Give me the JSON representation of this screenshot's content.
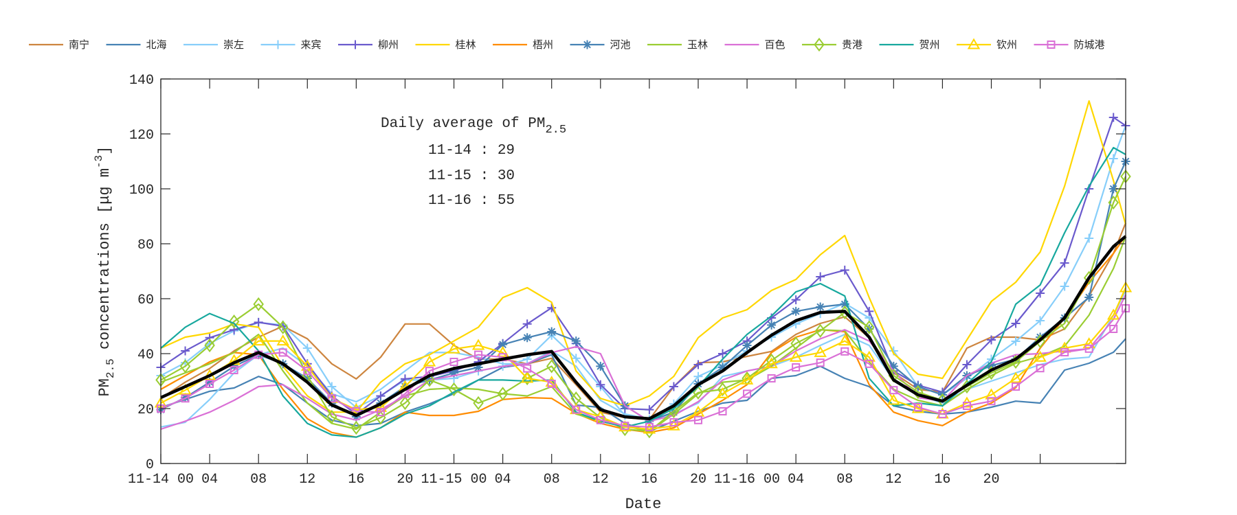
{
  "chart_data": {
    "type": "line",
    "xlabel": "Date",
    "ylabel": {
      "main": "PM",
      "sub": "2.5",
      "rest": " concentrations [μg m",
      "sup": "-3",
      "end": "]"
    },
    "xlim": [
      0,
      79
    ],
    "ylim": [
      0,
      140
    ],
    "grid": false,
    "legend_position": "top",
    "x_unit": "hour since 11-14 00:00",
    "x": [
      0,
      2,
      4,
      6,
      8,
      10,
      12,
      14,
      16,
      18,
      20,
      22,
      24,
      26,
      28,
      30,
      32,
      34,
      36,
      38,
      40,
      42,
      44,
      46,
      48,
      50,
      52,
      54,
      56,
      58,
      60,
      62,
      64,
      66,
      68,
      70,
      72,
      74,
      76,
      78,
      79
    ],
    "xticks": [
      0,
      4,
      8,
      12,
      16,
      20,
      24,
      28,
      32,
      36,
      40,
      44,
      48,
      52,
      56,
      60,
      64,
      68,
      72
    ],
    "xtick_labels": [
      "11-14 00",
      "04",
      "08",
      "12",
      "16",
      "20",
      "11-15 00",
      "04",
      "08",
      "12",
      "16",
      "20",
      "11-16 00",
      "04",
      "08",
      "12",
      "16",
      "20",
      ""
    ],
    "yticks": [
      0,
      20,
      40,
      60,
      80,
      100,
      120,
      140
    ],
    "ytick_labels": [
      "0",
      "20",
      "40",
      "60",
      "80",
      "100",
      "120",
      "140"
    ],
    "annotation": {
      "title_main": "Daily average of PM",
      "title_sub": "2.5",
      "lines": [
        "11-14 : 29",
        "11-15 : 30",
        "11-16 : 55"
      ]
    },
    "series": [
      {
        "name": "南宁",
        "color": "#CD853F",
        "marker": "none",
        "values": [
          23.7,
          29.6,
          34.6,
          41,
          46,
          50,
          45.4,
          36.3,
          30.8,
          38.7,
          50.8,
          50.8,
          43,
          38,
          38,
          36.3,
          38.3,
          28.7,
          18.7,
          16.7,
          16,
          28,
          36.7,
          37,
          39,
          40.8,
          47,
          51,
          53.4,
          45.8,
          33,
          27,
          26,
          42,
          46,
          46,
          45,
          49,
          61,
          76.5,
          87.6
        ]
      },
      {
        "name": "北海",
        "color": "#4682B4",
        "marker": "none",
        "values": [
          20.4,
          23.3,
          26.3,
          27.5,
          31.7,
          28.7,
          22,
          15.8,
          13.8,
          14.6,
          18.7,
          21.7,
          25.4,
          30.4,
          35,
          36.3,
          39.6,
          21.3,
          20.4,
          14.6,
          11.7,
          15.4,
          19,
          22,
          23,
          31,
          32,
          35.4,
          31,
          28,
          21,
          19,
          18,
          18.7,
          20.5,
          22.7,
          22,
          34,
          36.5,
          40.5,
          45.4
        ]
      },
      {
        "name": "崇左",
        "color": "#87CEFA",
        "marker": "none",
        "values": [
          13.3,
          15,
          23.3,
          33,
          39.6,
          42,
          35.4,
          25.4,
          22.5,
          27,
          33.7,
          40.4,
          40.4,
          38.7,
          36.3,
          36.3,
          41,
          35.4,
          23,
          18,
          16.3,
          18,
          22,
          31.7,
          33.7,
          35.4,
          38.7,
          43,
          47,
          43,
          30.4,
          25,
          22,
          27,
          30,
          33,
          36,
          38,
          38.7,
          54,
          63
        ]
      },
      {
        "name": "来宾",
        "color": "#87CEFA",
        "marker": "plus",
        "values": [
          32,
          36.7,
          43.7,
          48.3,
          51.3,
          50.4,
          42,
          28,
          20.4,
          24.6,
          30.4,
          30.4,
          31,
          33.7,
          35.4,
          38,
          46.7,
          38.3,
          28,
          17.5,
          16,
          21.7,
          31.7,
          35.8,
          41,
          46,
          50.8,
          54.6,
          58.3,
          53,
          41,
          28,
          25,
          31,
          38,
          44.5,
          52,
          64.5,
          82,
          111,
          123
        ]
      },
      {
        "name": "柳州",
        "color": "#6A5ACD",
        "marker": "plus",
        "values": [
          35,
          41,
          45.8,
          48.7,
          51.4,
          50,
          36.3,
          24.6,
          17.9,
          24.6,
          30.8,
          31.7,
          33.7,
          37,
          43.7,
          50.8,
          56.7,
          43.7,
          28.7,
          20,
          19.6,
          28,
          36,
          40,
          44.6,
          53,
          59.6,
          68,
          70.4,
          55.4,
          33.7,
          28.5,
          26,
          36,
          45,
          51,
          62,
          73,
          100,
          126,
          123
        ]
      },
      {
        "name": "桂林",
        "color": "#FFD700",
        "marker": "none",
        "values": [
          42,
          46,
          47.5,
          50.8,
          49.6,
          35.4,
          24.6,
          18.7,
          18.7,
          29.6,
          36.3,
          39.6,
          44.6,
          49.6,
          60.4,
          64,
          58.7,
          33.7,
          23.7,
          21,
          24.6,
          31.7,
          45.8,
          53,
          56,
          63,
          67,
          76,
          83,
          60.4,
          40,
          32.5,
          31,
          45,
          59,
          66,
          77,
          101,
          132,
          103,
          87
        ]
      },
      {
        "name": "梧州",
        "color": "#FF8C00",
        "marker": "none",
        "values": [
          27,
          32,
          37,
          40.4,
          39.6,
          27,
          16.3,
          11.3,
          9.6,
          13,
          18.7,
          17.5,
          17.5,
          19,
          23.3,
          24,
          23.7,
          18.3,
          14.6,
          12.5,
          11.3,
          13,
          18,
          23,
          28.7,
          40.4,
          46,
          48.7,
          48,
          28.7,
          18.7,
          15.6,
          13.8,
          18.7,
          22,
          27.6,
          42,
          53,
          66,
          76.5,
          83
        ]
      },
      {
        "name": "河池",
        "color": "#4682B4",
        "marker": "star",
        "values": [
          19.6,
          24,
          29.6,
          35.4,
          39.6,
          36.3,
          31,
          22,
          17,
          22,
          28,
          30.4,
          33,
          35,
          43.3,
          45.8,
          48,
          44.6,
          35.4,
          21,
          15.4,
          18.7,
          29,
          35,
          43,
          50.4,
          55.4,
          57,
          58,
          49,
          35.4,
          28,
          25,
          32,
          35.6,
          38,
          46,
          53,
          60.5,
          100,
          110
        ]
      },
      {
        "name": "玉林",
        "color": "#9ACD32",
        "marker": "none",
        "values": [
          29.6,
          33,
          36.3,
          40.4,
          47,
          33.7,
          22,
          14.6,
          12.5,
          18.7,
          24.6,
          27,
          27.5,
          27,
          25.4,
          24.6,
          28,
          18,
          15.4,
          13.7,
          11.7,
          18,
          25.4,
          29.6,
          30.4,
          35.4,
          42,
          48.7,
          48.3,
          37,
          27,
          23,
          21,
          27,
          32,
          36.5,
          39,
          42.7,
          54,
          71,
          82.7
        ]
      },
      {
        "name": "百色",
        "color": "#DA70D6",
        "marker": "none",
        "values": [
          12.5,
          15.4,
          18.7,
          23,
          28,
          28.7,
          23.7,
          18,
          15.8,
          19.6,
          24.6,
          30.4,
          32,
          33.7,
          35.4,
          36.3,
          40.4,
          42.5,
          40,
          21,
          15.4,
          17.5,
          22.5,
          30.4,
          33.7,
          35.4,
          41,
          45.4,
          48.7,
          44.6,
          33.7,
          24,
          22.7,
          32,
          36.5,
          39.6,
          40,
          41,
          41.8,
          52.5,
          61.4
        ]
      },
      {
        "name": "贵港",
        "color": "#9ACD32",
        "marker": "diamond",
        "values": [
          30.4,
          35.4,
          43,
          51.7,
          58,
          49.6,
          32,
          17,
          13,
          16.7,
          22,
          30.4,
          27,
          22,
          25.4,
          31,
          35.4,
          23.7,
          16.7,
          12.5,
          11.7,
          19,
          25.8,
          27,
          31,
          37.5,
          43.7,
          48.3,
          55,
          49.6,
          32,
          26,
          23,
          28,
          33,
          37,
          44.5,
          51,
          67.6,
          95,
          104.5
        ]
      },
      {
        "name": "贺州",
        "color": "#17A89E",
        "marker": "none",
        "values": [
          42,
          49.6,
          54.6,
          51,
          41,
          24.6,
          14.6,
          10.4,
          9.6,
          13,
          18,
          21,
          26,
          30.4,
          30.4,
          30,
          30.4,
          18.7,
          15.4,
          13.3,
          15.4,
          20,
          28,
          38,
          47,
          53.7,
          62.5,
          65.5,
          61,
          31,
          21,
          22,
          21,
          29,
          37,
          58,
          65,
          84,
          101,
          115,
          112.5
        ]
      },
      {
        "name": "钦州",
        "color": "#FFD700",
        "marker": "triangle",
        "values": [
          22,
          26.7,
          32,
          37.5,
          44.6,
          44.6,
          35.4,
          23.7,
          19.6,
          20.4,
          28,
          37,
          41.7,
          43,
          40.4,
          31,
          29.6,
          19.6,
          17,
          13.3,
          12.5,
          13.7,
          18.7,
          25.4,
          30.4,
          36.3,
          38.7,
          40.4,
          44.6,
          38.7,
          23,
          20,
          18,
          22,
          25,
          31,
          38.7,
          42,
          43.6,
          54,
          64
        ]
      },
      {
        "name": "防城港",
        "color": "#DA70D6",
        "marker": "square",
        "values": [
          20,
          23.7,
          29,
          34,
          39.6,
          40.4,
          33.7,
          23.7,
          19,
          18.7,
          25.4,
          33.7,
          37,
          39.6,
          38.7,
          34.6,
          29,
          19.6,
          15.8,
          13.7,
          13.3,
          15,
          15.8,
          19,
          25.4,
          31,
          35,
          36.7,
          40.8,
          36.3,
          26.7,
          20.5,
          18,
          21,
          22.7,
          28,
          34.7,
          40.5,
          41.8,
          49,
          56.5
        ]
      }
    ],
    "mean_series": {
      "color": "#000000",
      "values": [
        24,
        28,
        32,
        36.7,
        40.4,
        36.3,
        29.6,
        21.3,
        17.5,
        21.7,
        27,
        32,
        34.6,
        36.3,
        38,
        39.6,
        40.8,
        29.6,
        19.6,
        17,
        16.3,
        21,
        28.7,
        33.7,
        40.4,
        46.7,
        52,
        55,
        55.4,
        46,
        30.4,
        25,
        22.7,
        28.5,
        34,
        38,
        45,
        53,
        67.6,
        79,
        82.7
      ]
    }
  }
}
